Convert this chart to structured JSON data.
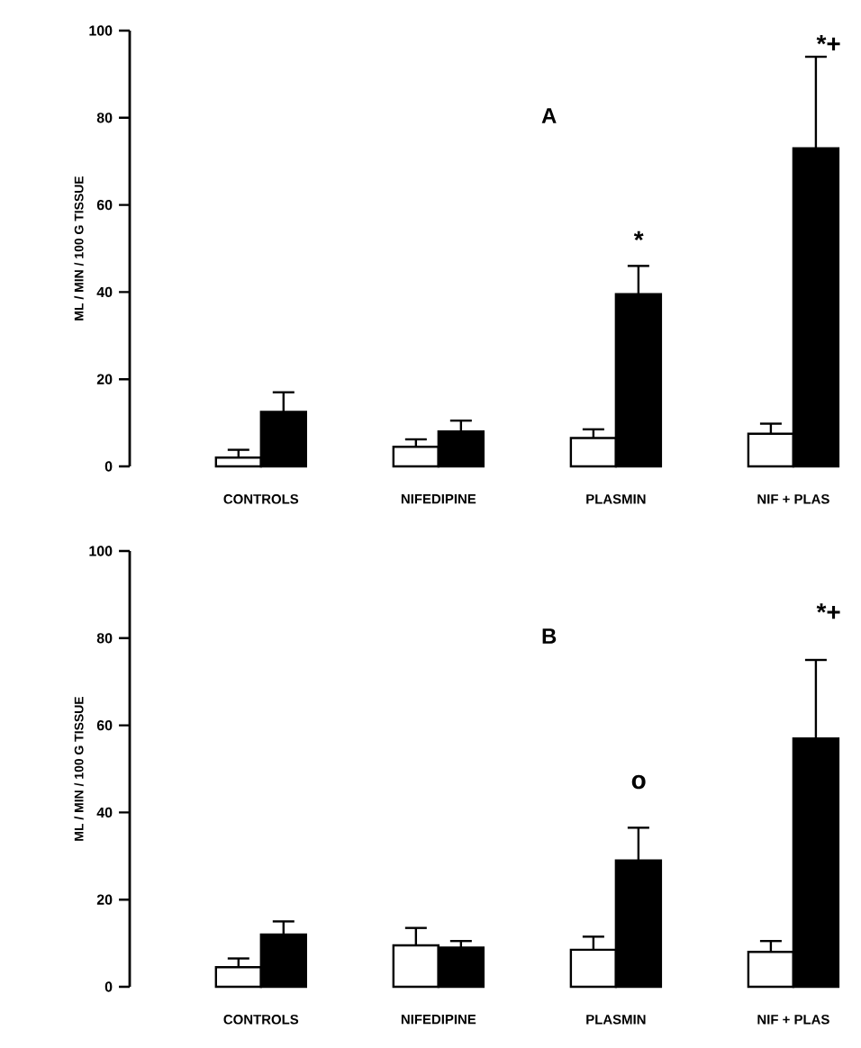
{
  "chart_data": [
    {
      "type": "bar",
      "title": "A",
      "ylabel": "ML / MIN / 100 G TISSUE",
      "categories": [
        "CONTROLS",
        "NIFEDIPINE",
        "PLASMIN",
        "NIF + PLAS"
      ],
      "series": [
        {
          "color": "#ffffff",
          "values": [
            2,
            4.5,
            6.5,
            7.5
          ],
          "errors": [
            [
              2,
              3.8
            ],
            [
              4.5,
              6.2
            ],
            [
              6.5,
              8.5
            ],
            [
              7.5,
              9.8
            ]
          ]
        },
        {
          "color": "#000000",
          "values": [
            12.5,
            8,
            39.5,
            73
          ],
          "errors": [
            [
              12.5,
              17
            ],
            [
              8,
              10.5
            ],
            [
              39.5,
              46
            ],
            [
              73,
              94
            ]
          ]
        }
      ],
      "ylim": [
        0,
        100
      ],
      "yticks": [
        0,
        20,
        40,
        60,
        80,
        100
      ],
      "annotations": [
        "*",
        "*+"
      ]
    },
    {
      "type": "bar",
      "title": "B",
      "ylabel": "ML / MIN / 100 G TISSUE",
      "categories": [
        "CONTROLS",
        "NIFEDIPINE",
        "PLASMIN",
        "NIF + PLAS"
      ],
      "series": [
        {
          "color": "#ffffff",
          "values": [
            4.5,
            9.5,
            8.5,
            8
          ],
          "errors": [
            [
              4.5,
              6.5
            ],
            [
              9.5,
              13.5
            ],
            [
              8.5,
              11.5
            ],
            [
              8,
              10.5
            ]
          ]
        },
        {
          "color": "#000000",
          "values": [
            12,
            9,
            29,
            57
          ],
          "errors": [
            [
              12,
              15
            ],
            [
              9,
              10.5
            ],
            [
              29,
              36.5
            ],
            [
              57,
              75
            ]
          ]
        }
      ],
      "ylim": [
        0,
        100
      ],
      "yticks": [
        0,
        20,
        40,
        60,
        80,
        100
      ],
      "annotations": [
        "o",
        "*+"
      ]
    }
  ]
}
